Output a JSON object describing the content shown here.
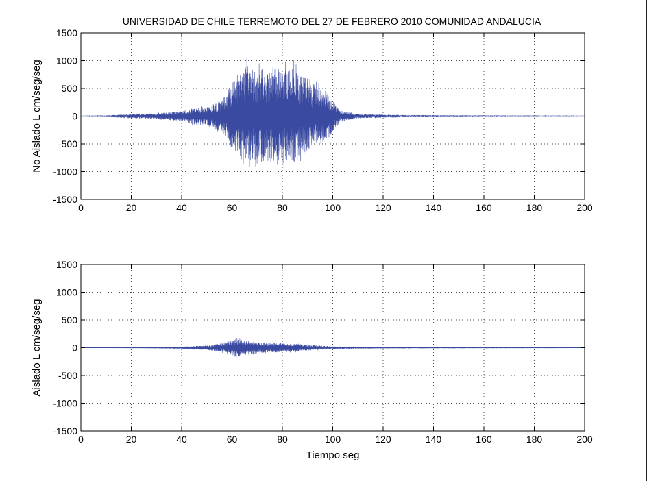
{
  "chart_data": [
    {
      "type": "line",
      "title": "UNIVERSIDAD DE CHILE   TERREMOTO DEL 27 DE FEBRERO 2010 COMUNIDAD ANDALUCIA",
      "xlabel": "",
      "ylabel": "No Aislado L cm/seg/seg",
      "xlim": [
        0,
        200
      ],
      "ylim": [
        -1500,
        1500
      ],
      "xticks": [
        0,
        20,
        40,
        60,
        80,
        100,
        120,
        140,
        160,
        180,
        200
      ],
      "yticks": [
        -1500,
        -1000,
        -500,
        0,
        500,
        1000,
        1500
      ],
      "grid": true,
      "line_color": "#3a4aa0",
      "envelope": [
        {
          "t": 0,
          "amp": 10
        },
        {
          "t": 10,
          "amp": 15
        },
        {
          "t": 20,
          "amp": 40
        },
        {
          "t": 30,
          "amp": 60
        },
        {
          "t": 40,
          "amp": 100
        },
        {
          "t": 45,
          "amp": 180
        },
        {
          "t": 50,
          "amp": 200
        },
        {
          "t": 55,
          "amp": 300
        },
        {
          "t": 58,
          "amp": 500
        },
        {
          "t": 60,
          "amp": 700
        },
        {
          "t": 63,
          "amp": 1000
        },
        {
          "t": 65,
          "amp": 1080
        },
        {
          "t": 70,
          "amp": 950
        },
        {
          "t": 74,
          "amp": 1050
        },
        {
          "t": 77,
          "amp": 1070
        },
        {
          "t": 80,
          "amp": 950
        },
        {
          "t": 84,
          "amp": 1050
        },
        {
          "t": 88,
          "amp": 850
        },
        {
          "t": 92,
          "amp": 700
        },
        {
          "t": 97,
          "amp": 550
        },
        {
          "t": 100,
          "amp": 320
        },
        {
          "t": 103,
          "amp": 120
        },
        {
          "t": 110,
          "amp": 40
        },
        {
          "t": 130,
          "amp": 20
        },
        {
          "t": 160,
          "amp": 15
        },
        {
          "t": 200,
          "amp": 10
        }
      ]
    },
    {
      "type": "line",
      "title": "",
      "xlabel": "Tiempo seg",
      "ylabel": "Aislado L cm/seg/seg",
      "xlim": [
        0,
        200
      ],
      "ylim": [
        -1500,
        1500
      ],
      "xticks": [
        0,
        20,
        40,
        60,
        80,
        100,
        120,
        140,
        160,
        180,
        200
      ],
      "yticks": [
        -1500,
        -1000,
        -500,
        0,
        500,
        1000,
        1500
      ],
      "grid": true,
      "line_color": "#3a4aa0",
      "envelope": [
        {
          "t": 0,
          "amp": 2
        },
        {
          "t": 10,
          "amp": 4
        },
        {
          "t": 20,
          "amp": 8
        },
        {
          "t": 30,
          "amp": 10
        },
        {
          "t": 40,
          "amp": 20
        },
        {
          "t": 50,
          "amp": 45
        },
        {
          "t": 55,
          "amp": 80
        },
        {
          "t": 58,
          "amp": 120
        },
        {
          "t": 62,
          "amp": 200
        },
        {
          "t": 66,
          "amp": 140
        },
        {
          "t": 70,
          "amp": 110
        },
        {
          "t": 75,
          "amp": 110
        },
        {
          "t": 80,
          "amp": 90
        },
        {
          "t": 85,
          "amp": 80
        },
        {
          "t": 90,
          "amp": 60
        },
        {
          "t": 95,
          "amp": 40
        },
        {
          "t": 100,
          "amp": 25
        },
        {
          "t": 110,
          "amp": 15
        },
        {
          "t": 130,
          "amp": 10
        },
        {
          "t": 160,
          "amp": 8
        },
        {
          "t": 190,
          "amp": 6
        },
        {
          "t": 200,
          "amp": 3
        }
      ]
    }
  ]
}
